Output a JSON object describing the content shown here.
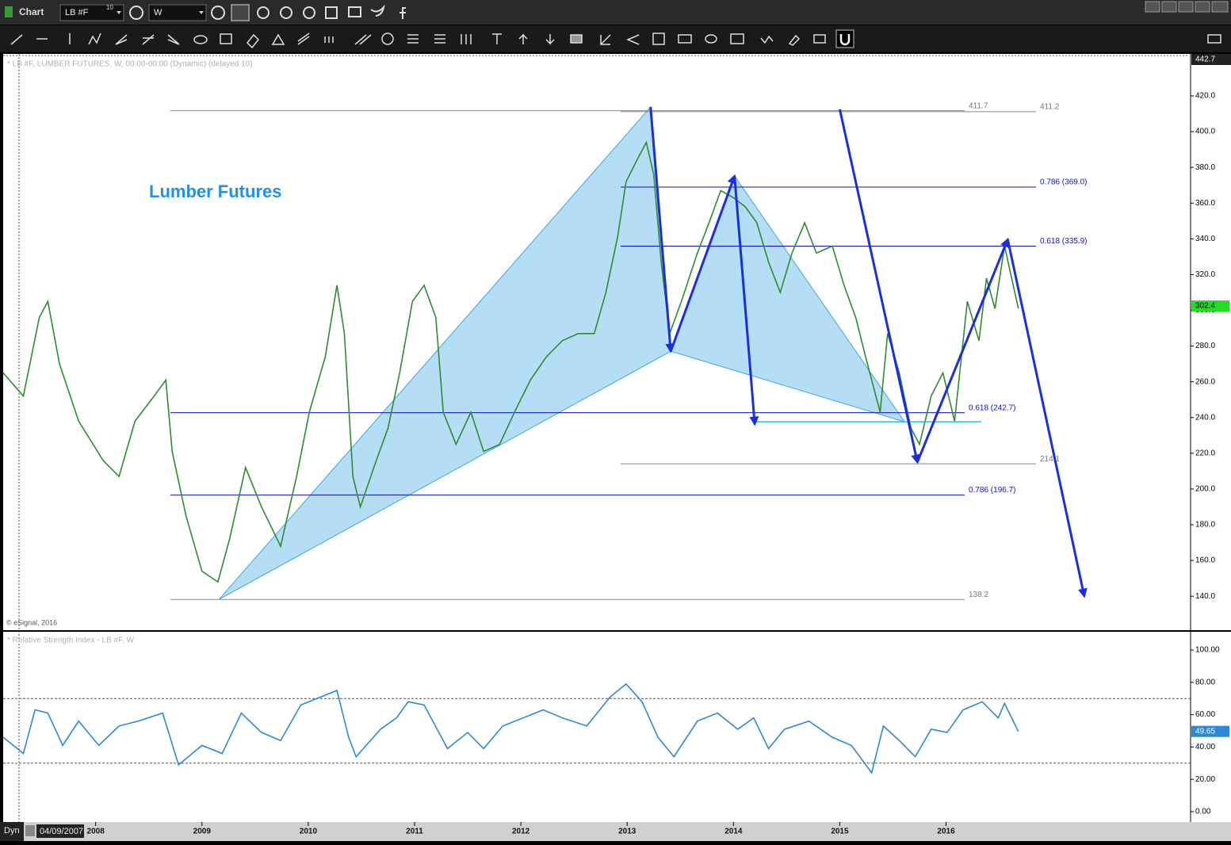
{
  "window": {
    "title": "Chart",
    "symbol": "LB #F",
    "symbol_badge": "10",
    "interval": "W",
    "mode": "Dyn",
    "start_date": "04/09/2007"
  },
  "chart_data": [
    {
      "type": "line",
      "title": "Lumber Futures",
      "header": "* LB #F, LUMBER FUTURES, W, 00:00-00:00 (Dynamic) (delayed 10)",
      "copyright": "© eSignal, 2016",
      "color": "#2e8b2e",
      "x": [
        2007.13,
        2007.32,
        2007.47,
        2007.55,
        2007.66,
        2007.84,
        2008.07,
        2008.22,
        2008.37,
        2008.55,
        2008.66,
        2008.72,
        2008.85,
        2009.0,
        2009.15,
        2009.26,
        2009.41,
        2009.56,
        2009.74,
        2009.89,
        2010.01,
        2010.16,
        2010.27,
        2010.34,
        2010.42,
        2010.49,
        2010.64,
        2010.75,
        2010.86,
        2010.98,
        2011.09,
        2011.2,
        2011.27,
        2011.39,
        2011.53,
        2011.65,
        2011.8,
        2011.94,
        2012.09,
        2012.24,
        2012.39,
        2012.54,
        2012.69,
        2012.8,
        2012.91,
        2012.99,
        2013.1,
        2013.18,
        2013.25,
        2013.32,
        2013.4,
        2013.51,
        2013.66,
        2013.77,
        2013.88,
        2014.0,
        2014.11,
        2014.22,
        2014.33,
        2014.44,
        2014.55,
        2014.67,
        2014.78,
        2014.93,
        2015.04,
        2015.15,
        2015.26,
        2015.38,
        2015.45,
        2015.56,
        2015.67,
        2015.75,
        2015.86,
        2015.97,
        2016.08,
        2016.2,
        2016.31,
        2016.38,
        2016.46,
        2016.55,
        2016.68
      ],
      "values": [
        265,
        252,
        296,
        305,
        270,
        238,
        216,
        207,
        238,
        252,
        261,
        221,
        185,
        154,
        148,
        172,
        212,
        190,
        168,
        207,
        243,
        274,
        314,
        287,
        207,
        190,
        216,
        234,
        265,
        305,
        314,
        296,
        243,
        225,
        243,
        221,
        225,
        243,
        261,
        274,
        283,
        287,
        287,
        310,
        341,
        372,
        385,
        394,
        376,
        327,
        287,
        305,
        332,
        349,
        367,
        363,
        358,
        349,
        327,
        310,
        332,
        349,
        332,
        336,
        314,
        296,
        270,
        243,
        287,
        265,
        234,
        225,
        252,
        265,
        238,
        305,
        283,
        318,
        301,
        336,
        301
      ],
      "xlim": [
        2007.13,
        2018.3
      ],
      "xticks": [
        2008,
        2009,
        2010,
        2011,
        2012,
        2013,
        2014,
        2015,
        2016
      ],
      "ylim": [
        121,
        443.5
      ],
      "yticks": [
        {
          "value": 140,
          "label": "140.0"
        },
        {
          "value": 160,
          "label": "160.0"
        },
        {
          "value": 180,
          "label": "180.0"
        },
        {
          "value": 200,
          "label": "200.0"
        },
        {
          "value": 220,
          "label": "220.0"
        },
        {
          "value": 240,
          "label": "240.0"
        },
        {
          "value": 260,
          "label": "260.0"
        },
        {
          "value": 280,
          "label": "280.0"
        },
        {
          "value": 300,
          "label": "300.0"
        },
        {
          "value": 320,
          "label": "320.0"
        },
        {
          "value": 340,
          "label": "340.0"
        },
        {
          "value": 360,
          "label": "360.0"
        },
        {
          "value": 380,
          "label": "380.0"
        },
        {
          "value": 400,
          "label": "400.0"
        },
        {
          "value": 420,
          "label": "420.0"
        }
      ],
      "top_value": 442.7,
      "last_value": 302.4,
      "last_color": "#22dd22",
      "levels": [
        {
          "value": 411.7,
          "color": "#888888"
        },
        {
          "value": 411.2,
          "color": "#888888"
        },
        {
          "value": 369.0,
          "label": "0.786 (369.0)",
          "color": "#1010c0"
        },
        {
          "value": 335.9,
          "label": "0.618 (335.9)",
          "color": "#1010c0"
        },
        {
          "value": 242.7,
          "label": "0.618 (242.7)",
          "color": "#1010c0"
        },
        {
          "value": 214.1,
          "color": "#888888"
        },
        {
          "value": 196.7,
          "label": "0.786 (196.7)",
          "color": "#1010c0"
        },
        {
          "value": 138.2,
          "color": "#888888"
        }
      ],
      "patterns": [
        {
          "x": [
            2009.16,
            2013.22,
            2013.41
          ],
          "y": [
            138.2,
            413.8,
            277.1
          ],
          "color": "#a8d8f5"
        },
        {
          "x": [
            2013.41,
            2014.01,
            2015.61
          ],
          "y": [
            277.1,
            375.2,
            237.6
          ],
          "color": "#a8d8f5"
        }
      ],
      "target_line": {
        "x": [
          2014.2,
          2016.33
        ],
        "y": [
          237.6,
          237.6
        ],
        "color": "#30b8e8"
      },
      "arrows": [
        {
          "x": [
            2013.22,
            2013.41
          ],
          "y": [
            413.8,
            277.1
          ]
        },
        {
          "x": [
            2013.41,
            2014.01
          ],
          "y": [
            277.1,
            375.2
          ]
        },
        {
          "x": [
            2014.01,
            2014.2
          ],
          "y": [
            375.2,
            236.3
          ]
        },
        {
          "x": [
            2015.0,
            2015.73
          ],
          "y": [
            412.5,
            215.0
          ]
        },
        {
          "x": [
            2015.73,
            2016.58
          ],
          "y": [
            215.0,
            339.7
          ]
        },
        {
          "x": [
            2016.58,
            2017.3
          ],
          "y": [
            339.7,
            140.0
          ]
        }
      ],
      "arrow_color": "#1a2ee0"
    },
    {
      "type": "line",
      "header": "* Relative Strength Index - LB #F, W",
      "color": "#2a8ad8",
      "x": [
        2007.13,
        2007.32,
        2007.43,
        2007.55,
        2007.69,
        2007.84,
        2008.03,
        2008.22,
        2008.4,
        2008.63,
        2008.78,
        2009.0,
        2009.19,
        2009.37,
        2009.56,
        2009.74,
        2009.93,
        2010.12,
        2010.27,
        2010.38,
        2010.45,
        2010.68,
        2010.83,
        2010.94,
        2011.09,
        2011.31,
        2011.5,
        2011.65,
        2011.83,
        2012.02,
        2012.21,
        2012.39,
        2012.62,
        2012.84,
        2012.99,
        2013.14,
        2013.29,
        2013.44,
        2013.66,
        2013.85,
        2014.04,
        2014.19,
        2014.33,
        2014.48,
        2014.71,
        2014.93,
        2015.11,
        2015.3,
        2015.41,
        2015.56,
        2015.71,
        2015.86,
        2016.01,
        2016.16,
        2016.34,
        2016.49,
        2016.55,
        2016.68
      ],
      "values": [
        46,
        36,
        63,
        61,
        41,
        56,
        41,
        53,
        56,
        61,
        29,
        41,
        36,
        61,
        49,
        44,
        66,
        71,
        75,
        46,
        34,
        51,
        58,
        68,
        66,
        39,
        49,
        39,
        53,
        58,
        63,
        58,
        53,
        71,
        79,
        68,
        46,
        34,
        56,
        61,
        51,
        58,
        39,
        51,
        56,
        46,
        41,
        24,
        53,
        44,
        34,
        51,
        49,
        63,
        68,
        58,
        67,
        49.65
      ],
      "ylim": [
        -6.4,
        111.3
      ],
      "yticks": [
        {
          "value": 0,
          "label": "0.00"
        },
        {
          "value": 20,
          "label": "20.00"
        },
        {
          "value": 40,
          "label": "40.00"
        },
        {
          "value": 60,
          "label": "60.00"
        },
        {
          "value": 80,
          "label": "80.00"
        },
        {
          "value": 100,
          "label": "100.00"
        }
      ],
      "levels": [
        70,
        30
      ],
      "last_value": 49.65,
      "last_color": "#2a8ad8"
    }
  ]
}
